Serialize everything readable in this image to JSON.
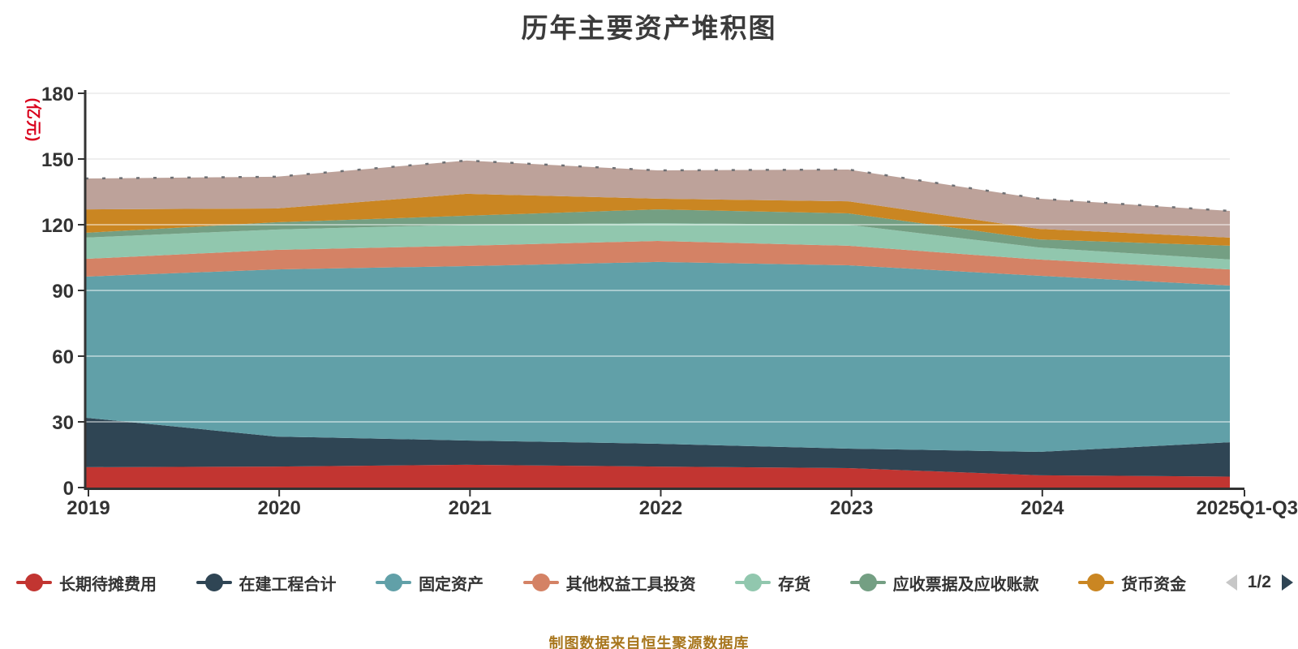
{
  "title": "历年主要资产堆积图",
  "y_axis_name": "(亿元)",
  "source_note": "制图数据来自恒生聚源数据库",
  "colors": {
    "title": "#3b3b3b",
    "axis_text": "#333333",
    "y_axis_name": "#d9001b",
    "source_note": "#a8761d",
    "pager_prev_disabled": "#c7c7c7",
    "pager_next_active": "#2f4554"
  },
  "legend": {
    "items": [
      {
        "label": "长期待摊费用",
        "color": "#c23531"
      },
      {
        "label": "在建工程合计",
        "color": "#2f4554"
      },
      {
        "label": "固定资产",
        "color": "#61a0a8"
      },
      {
        "label": "其他权益工具投资",
        "color": "#d48265"
      },
      {
        "label": "存货",
        "color": "#91c7ae"
      },
      {
        "label": "应收票据及应收账款",
        "color": "#749f83"
      },
      {
        "label": "货币资金",
        "color": "#ca8622"
      }
    ],
    "pager": {
      "label": "1/2"
    }
  },
  "chart_data": {
    "type": "area",
    "stacked": true,
    "title": "历年主要资产堆积图",
    "ylabel": "(亿元)",
    "ylim": [
      0,
      180
    ],
    "y_ticks": [
      0,
      30,
      60,
      90,
      120,
      150,
      180
    ],
    "grid": true,
    "legend_position": "bottom",
    "categories": [
      "2019",
      "2020",
      "2021",
      "2022",
      "2023",
      "2024",
      "2025Q1-Q3"
    ],
    "series": [
      {
        "name": "长期待摊费用",
        "color": "#c23531",
        "values": [
          9.3,
          9.6,
          10.4,
          9.6,
          8.9,
          5.6,
          5.0
        ]
      },
      {
        "name": "在建工程合计",
        "color": "#2f4554",
        "values": [
          22.6,
          13.7,
          11.1,
          10.4,
          8.9,
          10.7,
          15.7
        ]
      },
      {
        "name": "固定资产",
        "color": "#61a0a8",
        "values": [
          64.4,
          76.3,
          79.6,
          83.0,
          83.7,
          80.4,
          71.5
        ]
      },
      {
        "name": "其他权益工具投资",
        "color": "#d48265",
        "values": [
          8.1,
          8.9,
          9.3,
          9.6,
          8.9,
          7.4,
          7.4
        ]
      },
      {
        "name": "存货",
        "color": "#91c7ae",
        "values": [
          9.7,
          9.3,
          9.6,
          8.1,
          9.6,
          5.5,
          4.5
        ]
      },
      {
        "name": "应收票据及应收账款",
        "color": "#749f83",
        "values": [
          2.2,
          3.3,
          4.1,
          6.3,
          5.2,
          3.7,
          6.3
        ]
      },
      {
        "name": "货币资金",
        "color": "#ca8622",
        "values": [
          10.7,
          6.3,
          10.0,
          4.9,
          5.5,
          4.8,
          3.7
        ]
      },
      {
        "name": "",
        "color": "#bda29a",
        "values": [
          14.1,
          14.5,
          15.2,
          12.9,
          14.5,
          13.8,
          12.2
        ]
      }
    ],
    "top_edge_color": "#6e7074",
    "axis_color": "#333333",
    "grid_color": "#d9d9d9",
    "tick_label_color": "#333333"
  }
}
